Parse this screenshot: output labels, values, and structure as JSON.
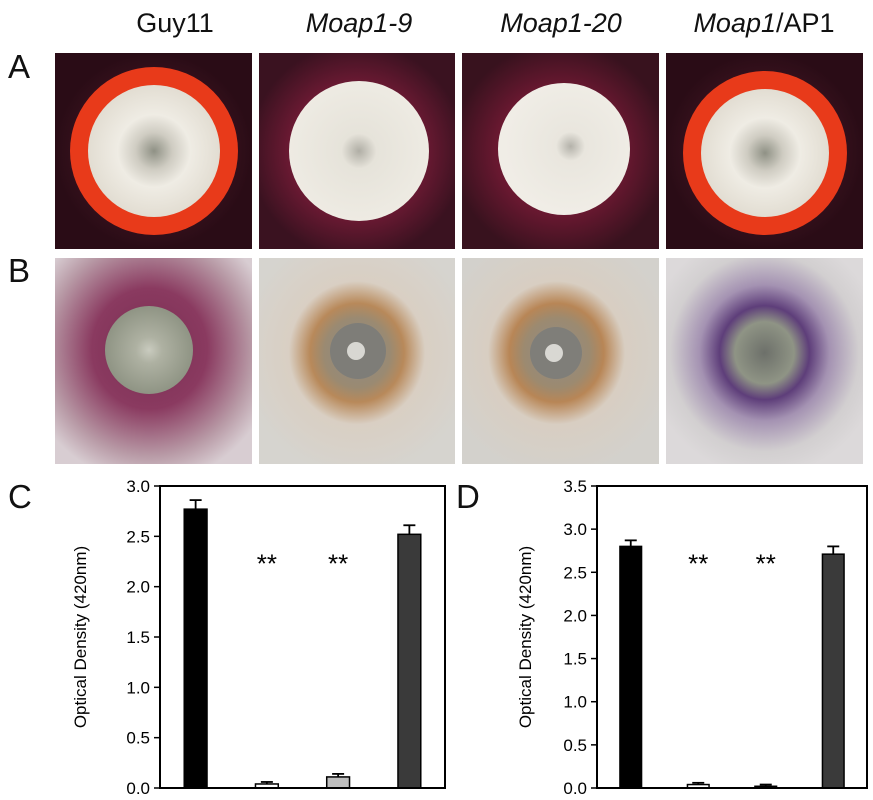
{
  "figure": {
    "column_labels": [
      {
        "plain": "Guy11",
        "italic": ""
      },
      {
        "plain": "",
        "italic": "Moap1-9"
      },
      {
        "plain": "",
        "italic": "Moap1-20"
      },
      {
        "plain": "/AP1",
        "italic": "Moap1"
      }
    ],
    "panel_letters": {
      "a": "A",
      "b": "B",
      "c": "C",
      "d": "D"
    },
    "significance_mark": "**"
  },
  "plates": {
    "row_a": [
      {
        "medium": "#3a1420",
        "ring": "#e83a1a",
        "colony": "#e9e6dd",
        "center": "#8f9185"
      },
      {
        "medium": "#3e1422",
        "ring": "#a3244a",
        "colony": "#ece9e0",
        "center": "#b0aea5"
      },
      {
        "medium": "#3b1320",
        "ring": "#9a2244",
        "colony": "#eeebe3",
        "center": "#b4b2aa"
      },
      {
        "medium": "#3a1420",
        "ring": "#e83a1a",
        "colony": "#e9e6dd",
        "center": "#8f9185"
      }
    ],
    "row_b": [
      {
        "medium": "#b89aa6",
        "halo": "#7a2d52",
        "colony": "#9fa392",
        "center": "#c9cbbf"
      },
      {
        "medium": "#d6d4cf",
        "halo": "#b8895a",
        "colony": "#8d8c86",
        "center": "#d8d7d2"
      },
      {
        "medium": "#d3d1cc",
        "halo": "#b88656",
        "colony": "#8e8d88",
        "center": "#d9d8d3"
      },
      {
        "medium": "#d2cfd0",
        "halo": "#5e3e7a",
        "colony": "#9aa090",
        "center": "#6d706a"
      }
    ]
  },
  "chart_data": [
    {
      "type": "bar",
      "panel": "C",
      "ylabel": "Optical Density (420nm)",
      "ylim": [
        0,
        3.0
      ],
      "yticks": [
        "0.0",
        "0.5",
        "1.0",
        "1.5",
        "2.0",
        "2.5",
        "3.0"
      ],
      "categories": [
        "Guy11",
        "Moap1-9",
        "Moap1-20",
        "Moap1/AP1"
      ],
      "values": [
        2.77,
        0.04,
        0.11,
        2.52
      ],
      "errors": [
        0.09,
        0.02,
        0.03,
        0.09
      ],
      "bar_colors": [
        "#000000",
        "#ffffff",
        "#bdbdbd",
        "#3a3a3a"
      ],
      "significance": [
        "",
        "**",
        "**",
        ""
      ]
    },
    {
      "type": "bar",
      "panel": "D",
      "ylabel": "Optical Density (420nm)",
      "ylim": [
        0,
        3.5
      ],
      "yticks": [
        "0.0",
        "0.5",
        "1.0",
        "1.5",
        "2.0",
        "2.5",
        "3.0",
        "3.5"
      ],
      "categories": [
        "Guy11",
        "Moap1-9",
        "Moap1-20",
        "Moap1/AP1"
      ],
      "values": [
        2.8,
        0.04,
        0.02,
        2.71
      ],
      "errors": [
        0.07,
        0.02,
        0.02,
        0.09
      ],
      "bar_colors": [
        "#000000",
        "#ffffff",
        "#ffffff",
        "#3a3a3a"
      ],
      "significance": [
        "",
        "**",
        "**",
        ""
      ]
    }
  ]
}
